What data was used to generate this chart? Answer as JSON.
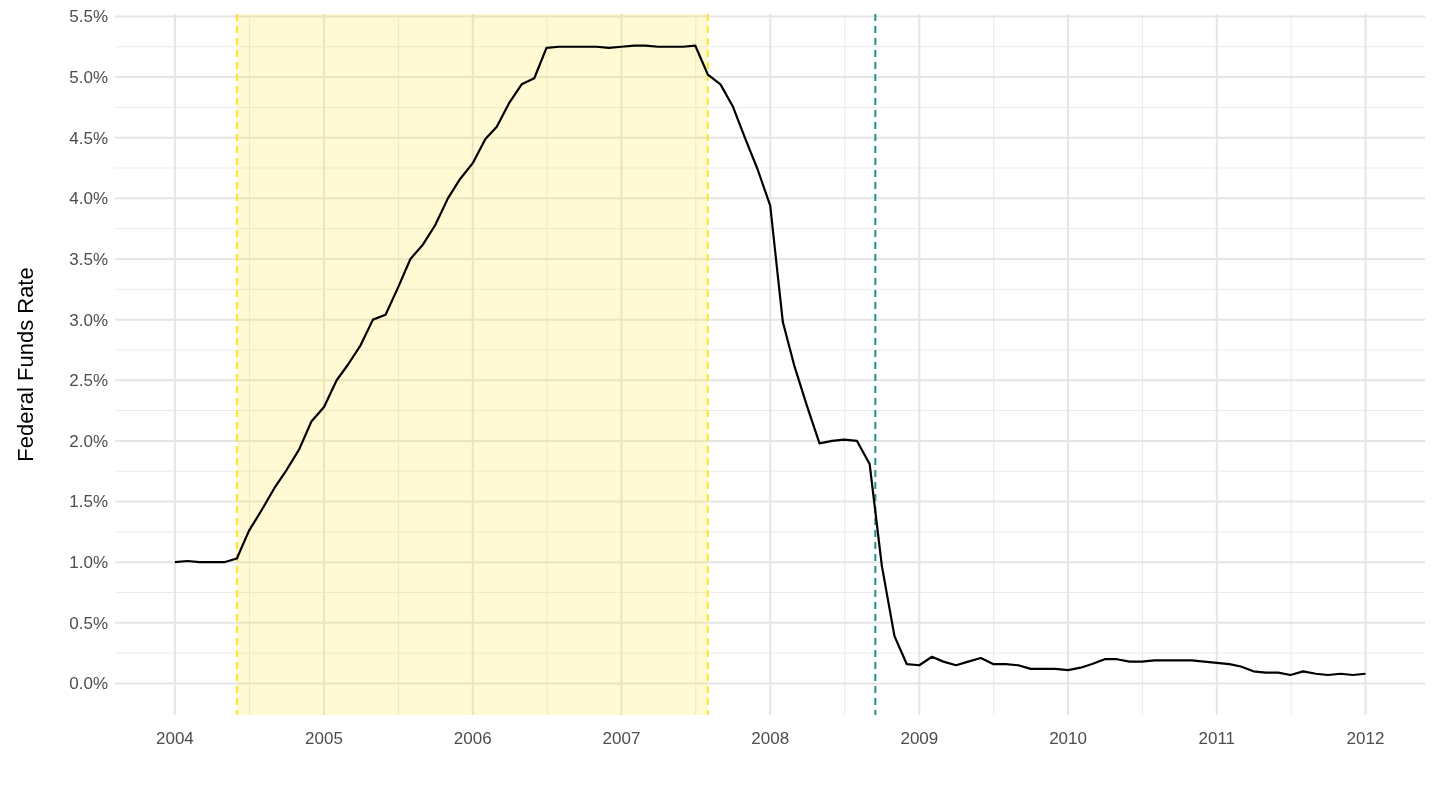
{
  "chart_data": {
    "type": "line",
    "ylabel": "Federal Funds Rate",
    "x": [
      "2004-01",
      "2004-02",
      "2004-03",
      "2004-04",
      "2004-05",
      "2004-06",
      "2004-07",
      "2004-08",
      "2004-09",
      "2004-10",
      "2004-11",
      "2004-12",
      "2005-01",
      "2005-02",
      "2005-03",
      "2005-04",
      "2005-05",
      "2005-06",
      "2005-07",
      "2005-08",
      "2005-09",
      "2005-10",
      "2005-11",
      "2005-12",
      "2006-01",
      "2006-02",
      "2006-03",
      "2006-04",
      "2006-05",
      "2006-06",
      "2006-07",
      "2006-08",
      "2006-09",
      "2006-10",
      "2006-11",
      "2006-12",
      "2007-01",
      "2007-02",
      "2007-03",
      "2007-04",
      "2007-05",
      "2007-06",
      "2007-07",
      "2007-08",
      "2007-09",
      "2007-10",
      "2007-11",
      "2007-12",
      "2008-01",
      "2008-02",
      "2008-03",
      "2008-04",
      "2008-05",
      "2008-06",
      "2008-07",
      "2008-08",
      "2008-09",
      "2008-10",
      "2008-11",
      "2008-12",
      "2009-01",
      "2009-02",
      "2009-03",
      "2009-04",
      "2009-05",
      "2009-06",
      "2009-07",
      "2009-08",
      "2009-09",
      "2009-10",
      "2009-11",
      "2009-12",
      "2010-01",
      "2010-02",
      "2010-03",
      "2010-04",
      "2010-05",
      "2010-06",
      "2010-07",
      "2010-08",
      "2010-09",
      "2010-10",
      "2010-11",
      "2010-12",
      "2011-01",
      "2011-02",
      "2011-03",
      "2011-04",
      "2011-05",
      "2011-06",
      "2011-07",
      "2011-08",
      "2011-09",
      "2011-10",
      "2011-11",
      "2011-12",
      "2012-01"
    ],
    "series": [
      {
        "color": "#000000",
        "values": [
          1.0,
          1.01,
          1.0,
          1.0,
          1.0,
          1.03,
          1.26,
          1.43,
          1.61,
          1.76,
          1.93,
          2.16,
          2.28,
          2.5,
          2.63,
          2.79,
          3.0,
          3.04,
          3.26,
          3.5,
          3.62,
          3.78,
          4.0,
          4.16,
          4.29,
          4.49,
          4.59,
          4.79,
          4.94,
          4.99,
          5.24,
          5.25,
          5.25,
          5.25,
          5.25,
          5.24,
          5.25,
          5.26,
          5.26,
          5.25,
          5.25,
          5.25,
          5.26,
          5.02,
          4.94,
          4.76,
          4.49,
          4.24,
          3.94,
          2.98,
          2.61,
          2.28,
          1.98,
          2.0,
          2.01,
          2.0,
          1.81,
          0.97,
          0.39,
          0.16,
          0.15,
          0.22,
          0.18,
          0.15,
          0.18,
          0.21,
          0.16,
          0.16,
          0.15,
          0.12,
          0.12,
          0.12,
          0.11,
          0.13,
          0.16,
          0.2,
          0.2,
          0.18,
          0.18,
          0.19,
          0.19,
          0.19,
          0.19,
          0.18,
          0.17,
          0.16,
          0.14,
          0.1,
          0.09,
          0.09,
          0.07,
          0.1,
          0.08,
          0.07,
          0.08,
          0.07,
          0.08
        ]
      }
    ],
    "xlim": [
      "2003-08-07",
      "2012-05-26"
    ],
    "xticks": [
      {
        "value": "2004",
        "label": "2004"
      },
      {
        "value": "2005",
        "label": "2005"
      },
      {
        "value": "2006",
        "label": "2006"
      },
      {
        "value": "2007",
        "label": "2007"
      },
      {
        "value": "2008",
        "label": "2008"
      },
      {
        "value": "2009",
        "label": "2009"
      },
      {
        "value": "2010",
        "label": "2010"
      },
      {
        "value": "2011",
        "label": "2011"
      },
      {
        "value": "2012",
        "label": "2012"
      }
    ],
    "ylim": [
      -0.26,
      5.52
    ],
    "yticks": [
      {
        "value": 0,
        "label": "0.0%"
      },
      {
        "value": 0.5,
        "label": "0.5%"
      },
      {
        "value": 1,
        "label": "1.0%"
      },
      {
        "value": 1.5,
        "label": "1.5%"
      },
      {
        "value": 2,
        "label": "2.0%"
      },
      {
        "value": 2.5,
        "label": "2.5%"
      },
      {
        "value": 3,
        "label": "3.0%"
      },
      {
        "value": 3.5,
        "label": "3.5%"
      },
      {
        "value": 4,
        "label": "4.0%"
      },
      {
        "value": 4.5,
        "label": "4.5%"
      },
      {
        "value": 5,
        "label": "5.0%"
      },
      {
        "value": 5.5,
        "label": "5.5%"
      }
    ],
    "grid": true,
    "bands": [
      {
        "axis": "x",
        "from": "2004-06",
        "to": "2007-08",
        "color": "#fde725"
      }
    ],
    "ref_lines": [
      {
        "axis": "x",
        "value": "2004-06",
        "color": "#fde725",
        "line_style": "dashed"
      },
      {
        "axis": "x",
        "value": "2007-08",
        "color": "#fde725",
        "line_style": "dashed"
      },
      {
        "axis": "x",
        "value": "2008-09-15",
        "color": "#21918c",
        "line_style": "dashed"
      }
    ]
  }
}
